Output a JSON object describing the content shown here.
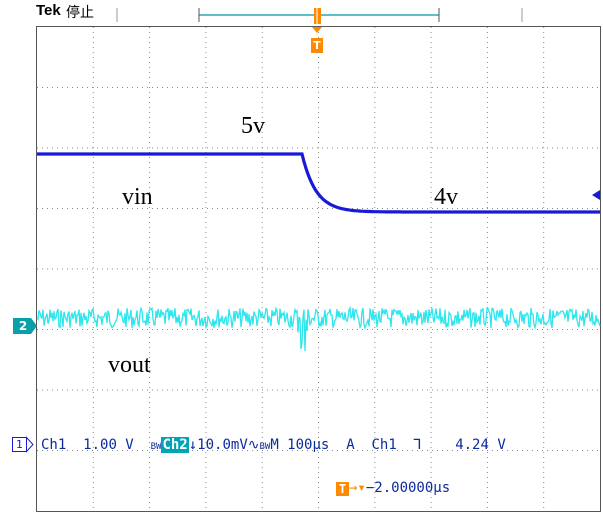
{
  "header": {
    "brand": "Tek",
    "run_state": "停止",
    "trigger_marker": "T"
  },
  "annotations": {
    "v_high": "5v",
    "v_low": "4v",
    "vin_label": "vin",
    "vout_label": "vout"
  },
  "channel_markers": {
    "ch1": "1",
    "ch2": "2"
  },
  "readout": {
    "ch1_label": "Ch1",
    "ch1_scale": "1.00 V",
    "ch2_bw": "BW",
    "ch2_label": "Ch2",
    "ch2_coupling": "↓",
    "ch2_scale": "10.0mV",
    "ch2_suffix": "∿",
    "ch2_bw2": "BW",
    "timebase": "M 100μs",
    "trigger_mode": "A",
    "trigger_source": "Ch1",
    "trigger_slope": "Ꞁ",
    "trigger_level": "4.24 V",
    "trigger_offset": "−2.00000μs"
  },
  "colors": {
    "ch1": "#1a1ad6",
    "ch2": "#2ee6ee",
    "trigger": "#ff8a00",
    "readout": "#0b2b9e",
    "grid": "#888888"
  }
}
